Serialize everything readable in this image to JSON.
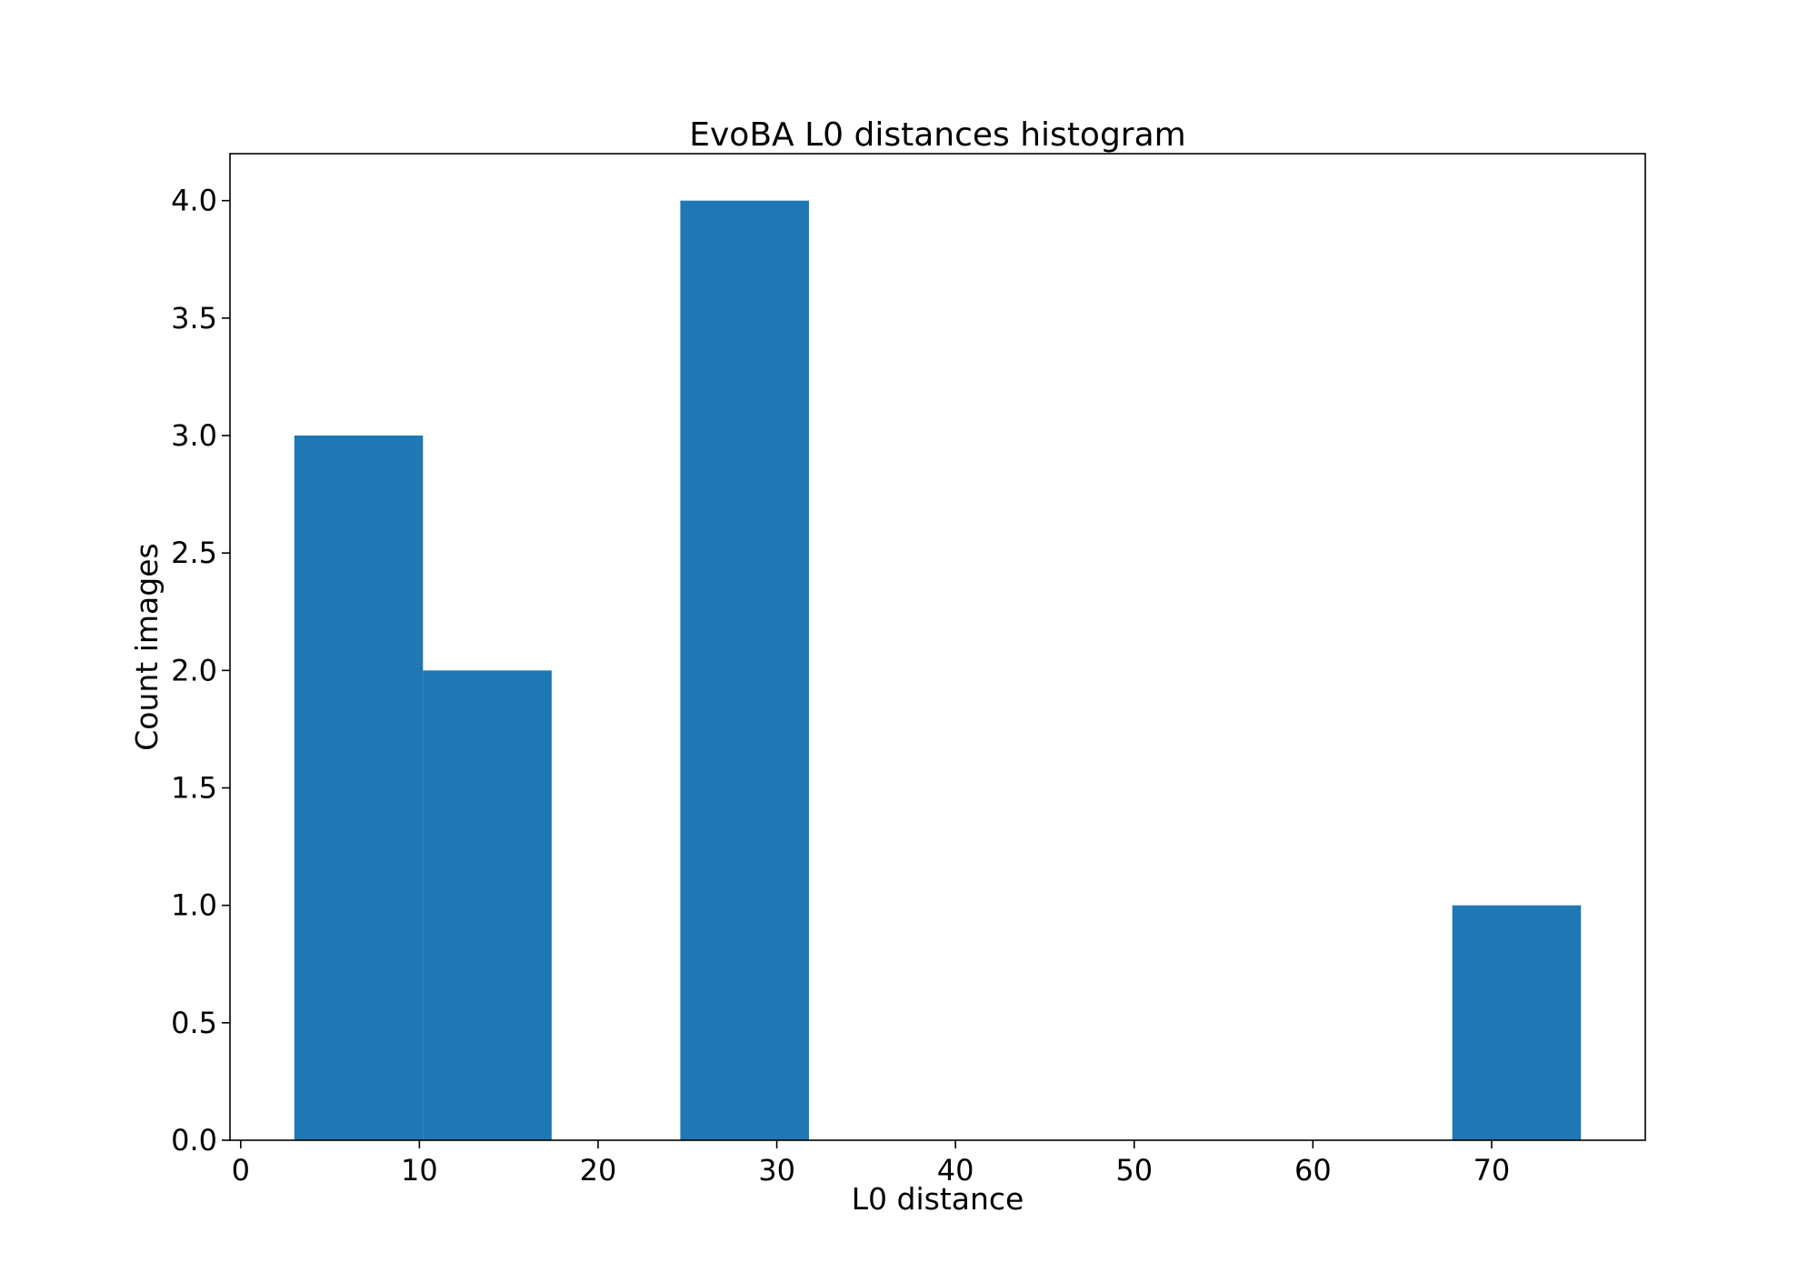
{
  "chart_data": {
    "type": "bar",
    "title": "EvoBA L0 distances histogram",
    "xlabel": "L0 distance",
    "ylabel": "Count images",
    "xlim": [
      -0.6,
      78.6
    ],
    "ylim": [
      0,
      4.2
    ],
    "x_ticks": [
      0,
      10,
      20,
      30,
      40,
      50,
      60,
      70
    ],
    "x_tick_labels": [
      "0",
      "10",
      "20",
      "30",
      "40",
      "50",
      "60",
      "70"
    ],
    "y_ticks": [
      0,
      0.5,
      1,
      1.5,
      2,
      2.5,
      3,
      3.5,
      4
    ],
    "y_tick_labels": [
      "0.0",
      "0.5",
      "1.0",
      "1.5",
      "2.0",
      "2.5",
      "3.0",
      "3.5",
      "4.0"
    ],
    "bin_edges": [
      3.0,
      10.2,
      17.4,
      24.6,
      31.8,
      39.0,
      46.2,
      53.4,
      60.6,
      67.8,
      75.0
    ],
    "counts": [
      3,
      2,
      0,
      4,
      0,
      0,
      0,
      0,
      0,
      1
    ],
    "bar_color": "#1f77b4",
    "grid": false,
    "legend": "none"
  }
}
